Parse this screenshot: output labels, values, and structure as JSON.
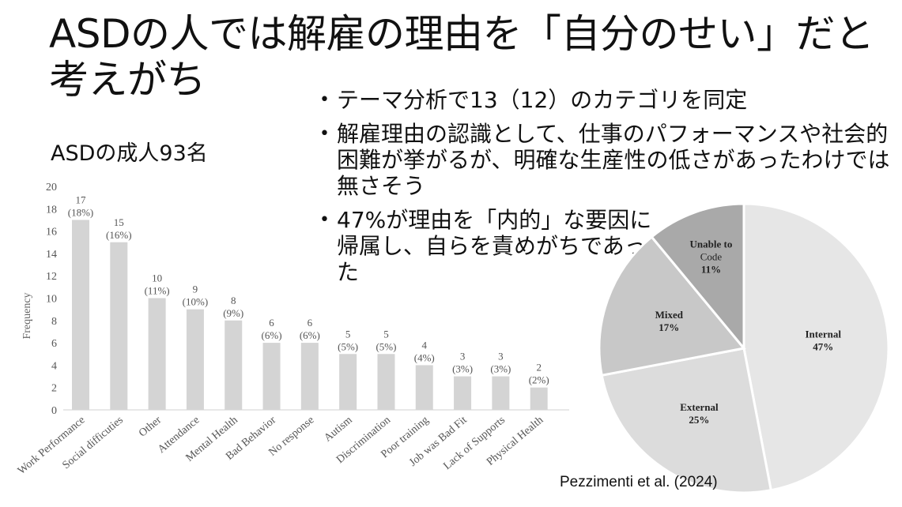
{
  "slide": {
    "title": "ASDの人では解雇の理由を「自分のせい」だと考えがち",
    "subtitle": "ASDの成人93名",
    "bullets": [
      "テーマ分析で13（12）のカテゴリを同定",
      "解雇理由の認識として、仕事のパフォーマンスや社会的困難が挙がるが、明確な生産性の低さがあったわけでは無さそう",
      "47%が理由を「内的」な要因に帰属し、自らを責めがちであった"
    ],
    "citation": "Pezzimenti et al. (2024)"
  },
  "chart_data": [
    {
      "type": "bar",
      "ylabel": "Frequency",
      "ylim": [
        0,
        20
      ],
      "yticks": [
        0,
        2,
        4,
        6,
        8,
        10,
        12,
        14,
        16,
        18,
        20
      ],
      "grid": false,
      "bar_color": "#d4d4d4",
      "categories": [
        "Work Performance",
        "Social difficuties",
        "Other",
        "Attendance",
        "Mental Health",
        "Bad Behavior",
        "No response",
        "Autism",
        "Discrimination",
        "Poor training",
        "Job was Bad Fit",
        "Lack of Supports",
        "Physical Health"
      ],
      "values": [
        17,
        15,
        10,
        9,
        8,
        6,
        6,
        5,
        5,
        4,
        3,
        3,
        2
      ],
      "percent_labels": [
        "(18%)",
        "(16%)",
        "(11%)",
        "(10%)",
        "(9%)",
        "(6%)",
        "(6%)",
        "(5%)",
        "(5%)",
        "(4%)",
        "(3%)",
        "(3%)",
        "(2%)"
      ]
    },
    {
      "type": "pie",
      "slices": [
        {
          "name": "Internal",
          "label": "47%",
          "value": 47,
          "color": "#e6e6e6"
        },
        {
          "name": "External",
          "label": "25%",
          "value": 25,
          "color": "#dcdcdc"
        },
        {
          "name": "Mixed",
          "label": "17%",
          "value": 17,
          "color": "#c8c8c8"
        },
        {
          "name": "Unable to Code",
          "label": "11%",
          "value": 11,
          "color": "#a9a9a9"
        }
      ]
    }
  ]
}
